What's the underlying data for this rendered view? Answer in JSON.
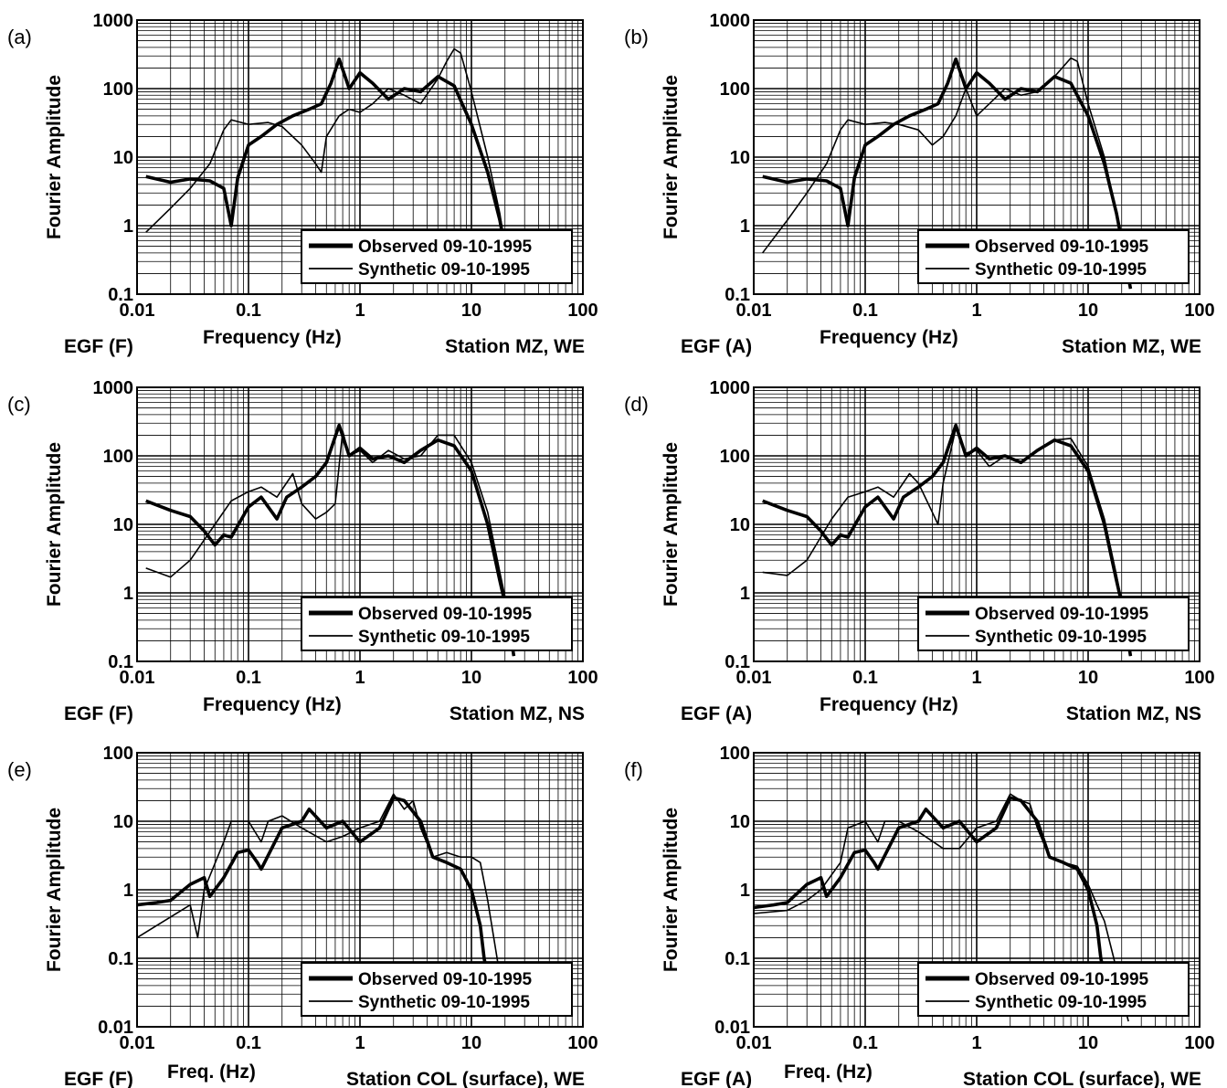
{
  "figure": {
    "legend": {
      "observed": "Observed 09-10-1995",
      "synthetic": "Synthetic 09-10-1995"
    },
    "colors": {
      "lines": "#000000",
      "grid": "#000000",
      "background": "#ffffff"
    }
  },
  "chart_data": [
    {
      "panel": "(a)",
      "type": "line",
      "scale": "log-log",
      "xlim": [
        0.01,
        100
      ],
      "ylim": [
        0.1,
        1000
      ],
      "xticks": [
        "0.01",
        "0.1",
        "1",
        "10",
        "100"
      ],
      "yticks": [
        "0.1",
        "1",
        "10",
        "100",
        "1000"
      ],
      "ylabel": "Fourier Amplitude",
      "egf": "EGF (F)",
      "xlabel": "Frequency (Hz)",
      "station": "Station MZ, WE",
      "legend_position": "bottom-right",
      "grid": true,
      "series": [
        {
          "name": "Observed 09-10-1995",
          "line": "thick",
          "x": [
            0.012,
            0.02,
            0.03,
            0.045,
            0.06,
            0.07,
            0.08,
            0.1,
            0.13,
            0.18,
            0.25,
            0.35,
            0.45,
            0.55,
            0.65,
            0.8,
            1.0,
            1.3,
            1.8,
            2.5,
            3.5,
            5,
            7,
            10,
            14,
            18,
            21
          ],
          "y": [
            5.2,
            4.3,
            4.8,
            4.5,
            3.5,
            1.0,
            5,
            15,
            20,
            30,
            40,
            50,
            60,
            120,
            270,
            100,
            170,
            120,
            70,
            100,
            90,
            150,
            110,
            30,
            6,
            1.2,
            0.3
          ]
        },
        {
          "name": "Synthetic 09-10-1995",
          "line": "thin",
          "x": [
            0.012,
            0.02,
            0.03,
            0.045,
            0.06,
            0.07,
            0.1,
            0.15,
            0.2,
            0.3,
            0.4,
            0.45,
            0.5,
            0.65,
            0.8,
            1.0,
            1.3,
            1.8,
            2.5,
            3.5,
            5,
            6,
            7,
            8,
            10,
            14,
            18,
            21
          ],
          "y": [
            0.8,
            1.8,
            3.5,
            8,
            25,
            35,
            30,
            32,
            28,
            15,
            8,
            6,
            20,
            40,
            50,
            45,
            60,
            100,
            80,
            60,
            140,
            250,
            380,
            330,
            90,
            10,
            1.5,
            0.3
          ]
        }
      ]
    },
    {
      "panel": "(b)",
      "type": "line",
      "scale": "log-log",
      "xlim": [
        0.01,
        100
      ],
      "ylim": [
        0.1,
        1000
      ],
      "xticks": [
        "0.01",
        "0.1",
        "1",
        "10",
        "100"
      ],
      "yticks": [
        "0.1",
        "1",
        "10",
        "100",
        "1000"
      ],
      "ylabel": "Fourier Amplitude",
      "egf": "EGF (A)",
      "xlabel": "Frequency (Hz)",
      "station": "Station MZ, WE",
      "legend_position": "bottom-right",
      "grid": true,
      "series": [
        {
          "name": "Observed 09-10-1995",
          "line": "thick",
          "x": [
            0.012,
            0.02,
            0.03,
            0.045,
            0.06,
            0.07,
            0.08,
            0.1,
            0.13,
            0.18,
            0.25,
            0.35,
            0.45,
            0.55,
            0.65,
            0.8,
            1.0,
            1.3,
            1.8,
            2.5,
            3.5,
            5,
            7,
            10,
            14,
            18,
            21,
            24
          ],
          "y": [
            5.2,
            4.3,
            4.8,
            4.5,
            3.5,
            1.0,
            5,
            15,
            20,
            30,
            40,
            50,
            60,
            120,
            270,
            100,
            170,
            120,
            70,
            100,
            90,
            150,
            120,
            40,
            8,
            1.5,
            0.4,
            0.12
          ]
        },
        {
          "name": "Synthetic 09-10-1995",
          "line": "thin",
          "x": [
            0.012,
            0.02,
            0.03,
            0.045,
            0.06,
            0.07,
            0.1,
            0.15,
            0.2,
            0.3,
            0.4,
            0.5,
            0.65,
            0.8,
            1.0,
            1.3,
            1.8,
            2.5,
            3.5,
            5,
            7,
            8,
            10,
            14,
            18,
            21,
            24
          ],
          "y": [
            0.4,
            1.2,
            3,
            8,
            25,
            35,
            30,
            32,
            30,
            25,
            15,
            20,
            40,
            100,
            40,
            60,
            100,
            80,
            90,
            150,
            280,
            250,
            60,
            10,
            1.5,
            0.4,
            0.12
          ]
        }
      ]
    },
    {
      "panel": "(c)",
      "type": "line",
      "scale": "log-log",
      "xlim": [
        0.01,
        100
      ],
      "ylim": [
        0.1,
        1000
      ],
      "xticks": [
        "0.01",
        "0.1",
        "1",
        "10",
        "100"
      ],
      "yticks": [
        "0.1",
        "1",
        "10",
        "100",
        "1000"
      ],
      "ylabel": "Fourier Amplitude",
      "egf": "EGF (F)",
      "xlabel": "Frequency (Hz)",
      "station": "Station MZ, NS",
      "legend_position": "bottom-right",
      "grid": true,
      "series": [
        {
          "name": "Observed 09-10-1995",
          "line": "thick",
          "x": [
            0.012,
            0.02,
            0.03,
            0.04,
            0.05,
            0.06,
            0.07,
            0.1,
            0.13,
            0.18,
            0.22,
            0.3,
            0.4,
            0.5,
            0.65,
            0.8,
            1.0,
            1.3,
            1.8,
            2.5,
            3.5,
            5,
            7,
            10,
            14,
            18,
            21,
            24
          ],
          "y": [
            22,
            16,
            13,
            8,
            5,
            7,
            6.5,
            18,
            25,
            12,
            25,
            35,
            50,
            80,
            280,
            100,
            130,
            90,
            100,
            80,
            120,
            170,
            140,
            60,
            10,
            1.5,
            0.5,
            0.12
          ]
        },
        {
          "name": "Synthetic 09-10-1995",
          "line": "thin",
          "x": [
            0.012,
            0.02,
            0.03,
            0.05,
            0.07,
            0.1,
            0.13,
            0.18,
            0.25,
            0.3,
            0.4,
            0.5,
            0.6,
            0.7,
            0.8,
            1.0,
            1.3,
            1.8,
            2.5,
            3.5,
            5,
            7,
            10,
            14,
            18,
            21,
            24
          ],
          "y": [
            2.3,
            1.7,
            3,
            10,
            22,
            30,
            35,
            25,
            55,
            20,
            12,
            15,
            20,
            230,
            100,
            120,
            80,
            120,
            90,
            100,
            200,
            200,
            80,
            15,
            2,
            0.6,
            0.12
          ]
        }
      ]
    },
    {
      "panel": "(d)",
      "type": "line",
      "scale": "log-log",
      "xlim": [
        0.01,
        100
      ],
      "ylim": [
        0.1,
        1000
      ],
      "xticks": [
        "0.01",
        "0.1",
        "1",
        "10",
        "100"
      ],
      "yticks": [
        "0.1",
        "1",
        "10",
        "100",
        "1000"
      ],
      "ylabel": "Fourier Amplitude",
      "egf": "EGF (A)",
      "xlabel": "Frequency (Hz)",
      "station": "Station MZ, NS",
      "legend_position": "bottom-right",
      "grid": true,
      "series": [
        {
          "name": "Observed 09-10-1995",
          "line": "thick",
          "x": [
            0.012,
            0.02,
            0.03,
            0.04,
            0.05,
            0.06,
            0.07,
            0.1,
            0.13,
            0.18,
            0.22,
            0.3,
            0.4,
            0.5,
            0.65,
            0.8,
            1.0,
            1.3,
            1.8,
            2.5,
            3.5,
            5,
            7,
            10,
            14,
            18,
            21,
            24
          ],
          "y": [
            22,
            16,
            13,
            8,
            5,
            7,
            6.5,
            18,
            25,
            12,
            25,
            35,
            50,
            80,
            280,
            100,
            130,
            90,
            100,
            80,
            120,
            170,
            140,
            60,
            10,
            1.5,
            0.5,
            0.12
          ]
        },
        {
          "name": "Synthetic 09-10-1995",
          "line": "thin",
          "x": [
            0.012,
            0.02,
            0.03,
            0.05,
            0.07,
            0.1,
            0.13,
            0.18,
            0.25,
            0.3,
            0.4,
            0.45,
            0.5,
            0.65,
            0.8,
            1.0,
            1.3,
            1.8,
            2.5,
            3.5,
            5,
            7,
            10,
            14,
            18,
            21,
            24
          ],
          "y": [
            2.0,
            1.8,
            3,
            12,
            25,
            30,
            35,
            25,
            55,
            40,
            15,
            10,
            40,
            250,
            110,
            120,
            70,
            100,
            80,
            120,
            170,
            180,
            70,
            12,
            1.8,
            0.5,
            0.12
          ]
        }
      ]
    },
    {
      "panel": "(e)",
      "type": "line",
      "scale": "log-log",
      "xlim": [
        0.01,
        100
      ],
      "ylim": [
        0.01,
        100
      ],
      "xticks": [
        "0.01",
        "0.1",
        "1",
        "10",
        "100"
      ],
      "yticks": [
        "0.01",
        "0.1",
        "1",
        "10",
        "100"
      ],
      "ylabel": "Fourier Amplitude",
      "egf": "EGF (F)",
      "xlabel": "Freq. (Hz)",
      "station": "Station COL (surface), WE",
      "legend_position": "bottom-right",
      "grid": true,
      "series": [
        {
          "name": "Observed 09-10-1995",
          "line": "thick",
          "x": [
            0.01,
            0.015,
            0.02,
            0.03,
            0.04,
            0.045,
            0.06,
            0.08,
            0.1,
            0.12,
            0.13,
            0.2,
            0.3,
            0.35,
            0.5,
            0.7,
            1.0,
            1.5,
            2.0,
            2.5,
            3.5,
            4.5,
            6,
            8,
            10,
            12,
            13,
            15
          ],
          "y": [
            0.6,
            0.65,
            0.7,
            1.2,
            1.5,
            0.8,
            1.5,
            3.5,
            3.8,
            2.5,
            2.0,
            8,
            10,
            15,
            8,
            10,
            5,
            8,
            22,
            20,
            10,
            3,
            2.5,
            2.0,
            1.0,
            0.3,
            0.1,
            0.03
          ]
        },
        {
          "name": "Synthetic 09-10-1995",
          "line": "thin",
          "x": [
            0.01,
            0.02,
            0.03,
            0.035,
            0.04,
            0.06,
            0.07,
            0.1,
            0.13,
            0.15,
            0.2,
            0.3,
            0.5,
            0.7,
            1.0,
            1.5,
            2.0,
            2.5,
            3,
            3.5,
            4.5,
            6,
            8,
            10,
            12,
            14,
            17,
            19
          ],
          "y": [
            0.2,
            0.4,
            0.6,
            0.2,
            1.0,
            5,
            10,
            10,
            5,
            10,
            12,
            8,
            5,
            6,
            8,
            10,
            25,
            15,
            20,
            8,
            3,
            3.5,
            3,
            3,
            2.5,
            0.7,
            0.1,
            0.03
          ]
        }
      ]
    },
    {
      "panel": "(f)",
      "type": "line",
      "scale": "log-log",
      "xlim": [
        0.01,
        100
      ],
      "ylim": [
        0.01,
        100
      ],
      "xticks": [
        "0.01",
        "0.1",
        "1",
        "10",
        "100"
      ],
      "yticks": [
        "0.01",
        "0.1",
        "1",
        "10",
        "100"
      ],
      "ylabel": "Fourier Amplitude",
      "egf": "EGF (A)",
      "xlabel": "Freq. (Hz)",
      "station": "Station COL (surface), WE",
      "legend_position": "bottom-right",
      "grid": true,
      "series": [
        {
          "name": "Observed 09-10-1995",
          "line": "thick",
          "x": [
            0.01,
            0.015,
            0.02,
            0.03,
            0.04,
            0.045,
            0.06,
            0.08,
            0.1,
            0.12,
            0.13,
            0.2,
            0.3,
            0.35,
            0.5,
            0.7,
            1.0,
            1.5,
            2.0,
            2.5,
            3.5,
            4.5,
            6,
            8,
            10,
            12,
            13,
            15
          ],
          "y": [
            0.55,
            0.6,
            0.65,
            1.2,
            1.5,
            0.8,
            1.5,
            3.5,
            3.8,
            2.5,
            2.0,
            8,
            10,
            15,
            8,
            10,
            5,
            8,
            22,
            20,
            10,
            3,
            2.5,
            2.0,
            1.0,
            0.3,
            0.1,
            0.03
          ]
        },
        {
          "name": "Synthetic 09-10-1995",
          "line": "thin",
          "x": [
            0.01,
            0.02,
            0.03,
            0.04,
            0.06,
            0.07,
            0.1,
            0.13,
            0.15,
            0.2,
            0.3,
            0.5,
            0.7,
            1.0,
            1.5,
            2.0,
            2.5,
            3,
            3.5,
            4.5,
            6,
            8,
            10,
            12,
            14,
            17,
            20,
            23
          ],
          "y": [
            0.45,
            0.5,
            0.7,
            1.0,
            2.5,
            8,
            10,
            5,
            10,
            10,
            7,
            4,
            4,
            8,
            10,
            25,
            20,
            18,
            8,
            3,
            2.5,
            2.2,
            1.2,
            0.6,
            0.35,
            0.1,
            0.03,
            0.012
          ]
        }
      ]
    }
  ]
}
